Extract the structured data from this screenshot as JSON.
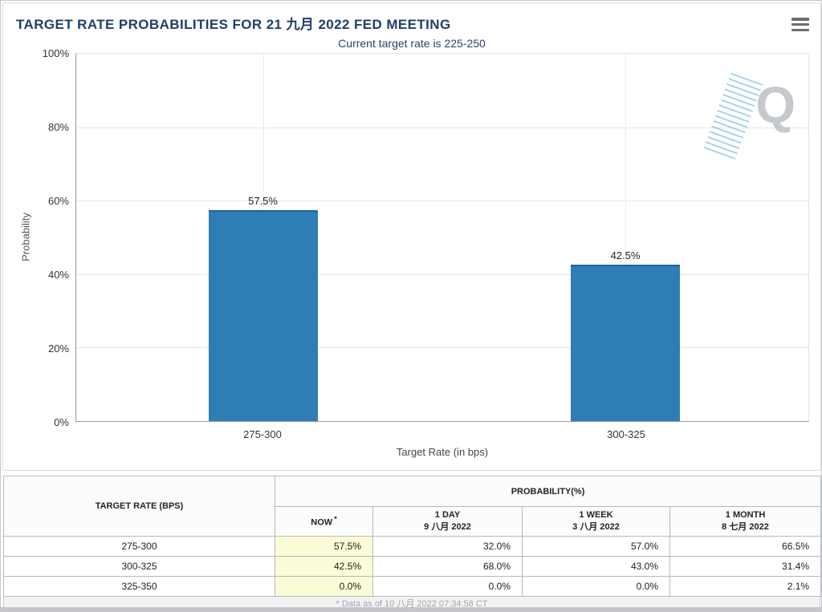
{
  "header": {
    "title": "TARGET RATE PROBABILITIES FOR 21 九月 2022 FED MEETING",
    "subtitle": "Current target rate is 225-250"
  },
  "chart_data": {
    "type": "bar",
    "title": "TARGET RATE PROBABILITIES FOR 21 九月 2022 FED MEETING",
    "subtitle": "Current target rate is 225-250",
    "categories": [
      "275-300",
      "300-325"
    ],
    "values": [
      57.5,
      42.5
    ],
    "bar_labels": [
      "57.5%",
      "42.5%"
    ],
    "xlabel": "Target Rate (in bps)",
    "ylabel": "Probability",
    "ylim": [
      0,
      100
    ],
    "ytick_labels": [
      "100%",
      "80%",
      "60%",
      "40%",
      "20%",
      "0%"
    ],
    "grid": true,
    "legend_position": "none",
    "bar_color": "#2e7eb5",
    "watermark_letter": "Q"
  },
  "table": {
    "corner_header": "TARGET RATE (BPS)",
    "group_header": "PROBABILITY(%)",
    "columns": [
      {
        "line1": "NOW",
        "sup": "*",
        "line2": ""
      },
      {
        "line1": "1 DAY",
        "line2": "9 八月 2022"
      },
      {
        "line1": "1 WEEK",
        "line2": "3 八月 2022"
      },
      {
        "line1": "1 MONTH",
        "line2": "8 七月 2022"
      }
    ],
    "rows": [
      {
        "target_rate": "275-300",
        "now": "57.5%",
        "one_day": "32.0%",
        "one_week": "57.0%",
        "one_month": "66.5%"
      },
      {
        "target_rate": "300-325",
        "now": "42.5%",
        "one_day": "68.0%",
        "one_week": "43.0%",
        "one_month": "31.4%"
      },
      {
        "target_rate": "325-350",
        "now": "0.0%",
        "one_day": "0.0%",
        "one_week": "0.0%",
        "one_month": "2.1%"
      }
    ],
    "highlight_color": "#fbfbd8"
  },
  "footer": {
    "note": "* Data as of 10 八月 2022 07:34:58 CT"
  },
  "colors": {
    "title_navy": "#1f3f68",
    "bar_blue": "#2e7eb5",
    "highlight_yellow": "#fbfbd8"
  }
}
